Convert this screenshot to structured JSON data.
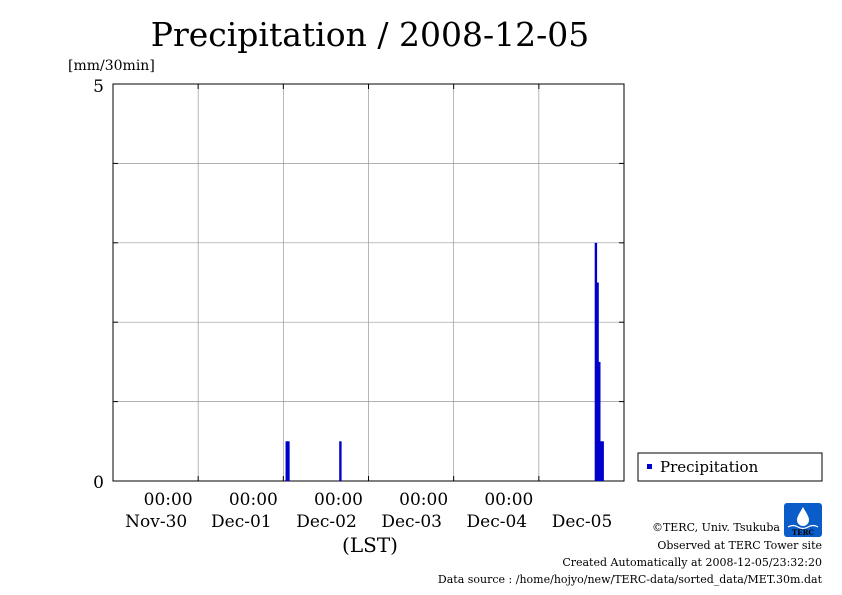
{
  "chart_data": {
    "type": "bar",
    "title": "Precipitation / 2008-12-05",
    "ylabel": "[mm/30min]",
    "xlabel": "(LST)",
    "ylim": [
      0,
      5
    ],
    "yticks": [
      "0",
      "5"
    ],
    "y_grid_step": 1,
    "x_range_days": [
      0,
      6
    ],
    "x_ticks": [
      {
        "day": 1,
        "time": "00:00",
        "date": "Nov-30"
      },
      {
        "day": 2,
        "time": "00:00",
        "date": "Dec-01"
      },
      {
        "day": 3,
        "time": "00:00",
        "date": "Dec-02"
      },
      {
        "day": 4,
        "time": "00:00",
        "date": "Dec-03"
      },
      {
        "day": 5,
        "time": "00:00",
        "date": "Dec-04"
      },
      {
        "day": 6,
        "time": "",
        "date": "Dec-05"
      }
    ],
    "grid": true,
    "legend_position": "bottom-right",
    "series": [
      {
        "name": "Precipitation",
        "color": "#0000cc",
        "points": [
          {
            "day": 2.04,
            "value": 0.5
          },
          {
            "day": 2.06,
            "value": 0.5
          },
          {
            "day": 2.67,
            "value": 0.5
          },
          {
            "day": 5.67,
            "value": 3.0
          },
          {
            "day": 5.69,
            "value": 2.5
          },
          {
            "day": 5.71,
            "value": 1.5
          },
          {
            "day": 5.73,
            "value": 0.5
          },
          {
            "day": 5.75,
            "value": 0.5
          }
        ]
      }
    ]
  },
  "credits": {
    "copyright": "©TERC, Univ. Tsukuba",
    "observed": "Observed at TERC Tower site",
    "created": "Created Automatically at 2008-12-05/23:32:20",
    "source": "Data source : /home/hojyo/new/TERC-data/sorted_data/MET.30m.dat",
    "logo_text": "TERC"
  }
}
